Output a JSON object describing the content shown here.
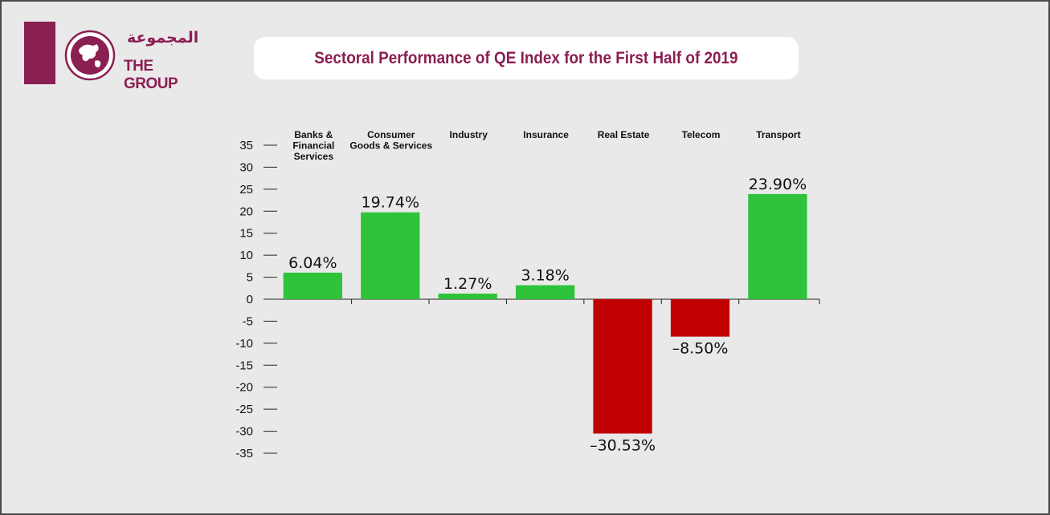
{
  "logo": {
    "arabic": "المجموعة",
    "latin": "THE GROUP"
  },
  "title": "Sectoral Performance of QE Index for the First Half of 2019",
  "colors": {
    "brand": "#8a1f52",
    "positive": "#2ec33a",
    "negative": "#c00000",
    "background": "#e9e9e9"
  },
  "chart_data": {
    "type": "bar",
    "title": "Sectoral Performance of QE Index for the First Half of 2019",
    "xlabel": "",
    "ylabel": "",
    "ylim": [
      -35,
      35
    ],
    "yticks": [
      35,
      30,
      25,
      20,
      15,
      10,
      5,
      0,
      -5,
      -10,
      -15,
      -20,
      -25,
      -30,
      -35
    ],
    "ytick_labels": [
      "35",
      "30",
      "25",
      "20",
      "15",
      "10",
      "5",
      "0",
      "-5",
      "-10",
      "-15",
      "-20",
      "-25",
      "-30",
      "-35"
    ],
    "categories": [
      [
        "Banks &",
        "Financial",
        "Services"
      ],
      [
        "Consumer",
        "Goods & Services"
      ],
      [
        "Industry"
      ],
      [
        "Insurance"
      ],
      [
        "Real Estate"
      ],
      [
        "Telecom"
      ],
      [
        "Transport"
      ]
    ],
    "values": [
      6.04,
      19.74,
      1.27,
      3.18,
      -30.53,
      -8.5,
      23.9
    ],
    "data_labels": [
      "6.04%",
      "19.74%",
      "1.27%",
      "3.18%",
      "–30.53%",
      "–8.50%",
      "23.90%"
    ],
    "category_label_position": "top",
    "grid": false,
    "legend": "none"
  }
}
